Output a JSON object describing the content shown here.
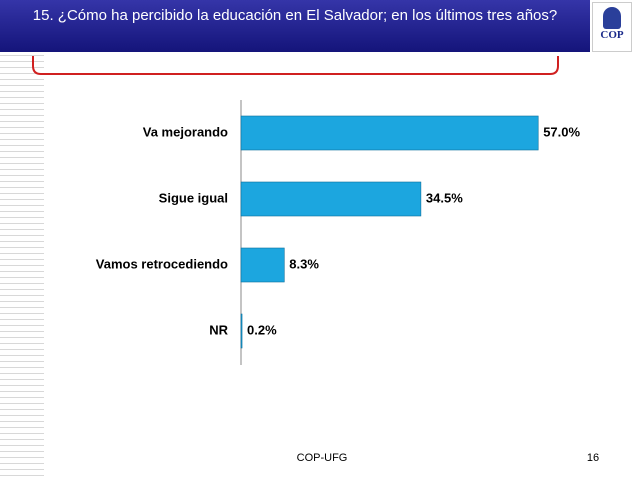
{
  "header": {
    "title": "15. ¿Cómo ha percibido la educación en El Salvador; en los últimos tres años?",
    "logo": "COP"
  },
  "chart_data": {
    "type": "bar",
    "orientation": "horizontal",
    "categories": [
      "Va mejorando",
      "Sigue igual",
      "Vamos retrocediendo",
      "NR"
    ],
    "values": [
      57.0,
      34.5,
      8.3,
      0.2
    ],
    "value_labels": [
      "57.0%",
      "34.5%",
      "8.3%",
      "0.2%"
    ],
    "color": "#1ca6df",
    "xlim": [
      0,
      70
    ]
  },
  "footer": {
    "text": "COP-UFG",
    "page": "16"
  }
}
